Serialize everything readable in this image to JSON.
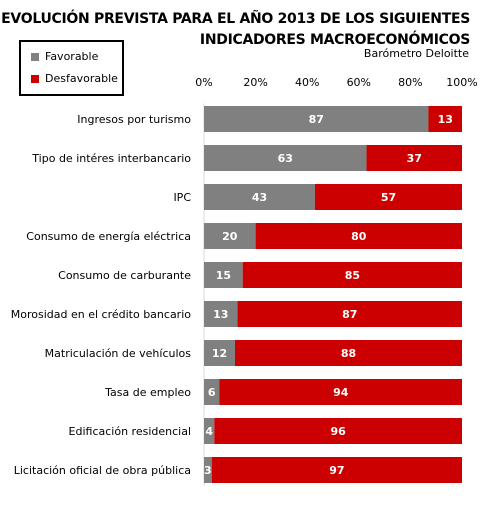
{
  "chart_data": {
    "type": "bar",
    "orientation": "horizontal",
    "stacked": true,
    "title": "EVOLUCIÓN PREVISTA PARA EL AÑO 2013 DE LOS SIGUIENTES INDICADORES MACROECONÓMICOS",
    "subtitle": "Barómetro Deloitte",
    "categories": [
      "Ingresos por turismo",
      "Tipo de intéres interbancario",
      "IPC",
      "Consumo de energía eléctrica",
      "Consumo de carburante",
      "Morosidad en el crédito bancario",
      "Matriculación de vehículos",
      "Tasa de empleo",
      "Edificación residencial",
      "Licitación oficial de obra pública"
    ],
    "series": [
      {
        "name": "Favorable",
        "color": "#808080",
        "values": [
          87,
          63,
          43,
          20,
          15,
          13,
          12,
          6,
          4,
          3
        ]
      },
      {
        "name": "Desfavorable",
        "color": "#cc0000",
        "values": [
          13,
          37,
          57,
          80,
          85,
          87,
          88,
          94,
          96,
          97
        ]
      }
    ],
    "xlim": [
      0,
      100
    ],
    "xticks": [
      "0%",
      "20%",
      "40%",
      "60%",
      "80%",
      "100%"
    ],
    "axis_position": "top",
    "grid": false,
    "legend_position": "top-left"
  }
}
